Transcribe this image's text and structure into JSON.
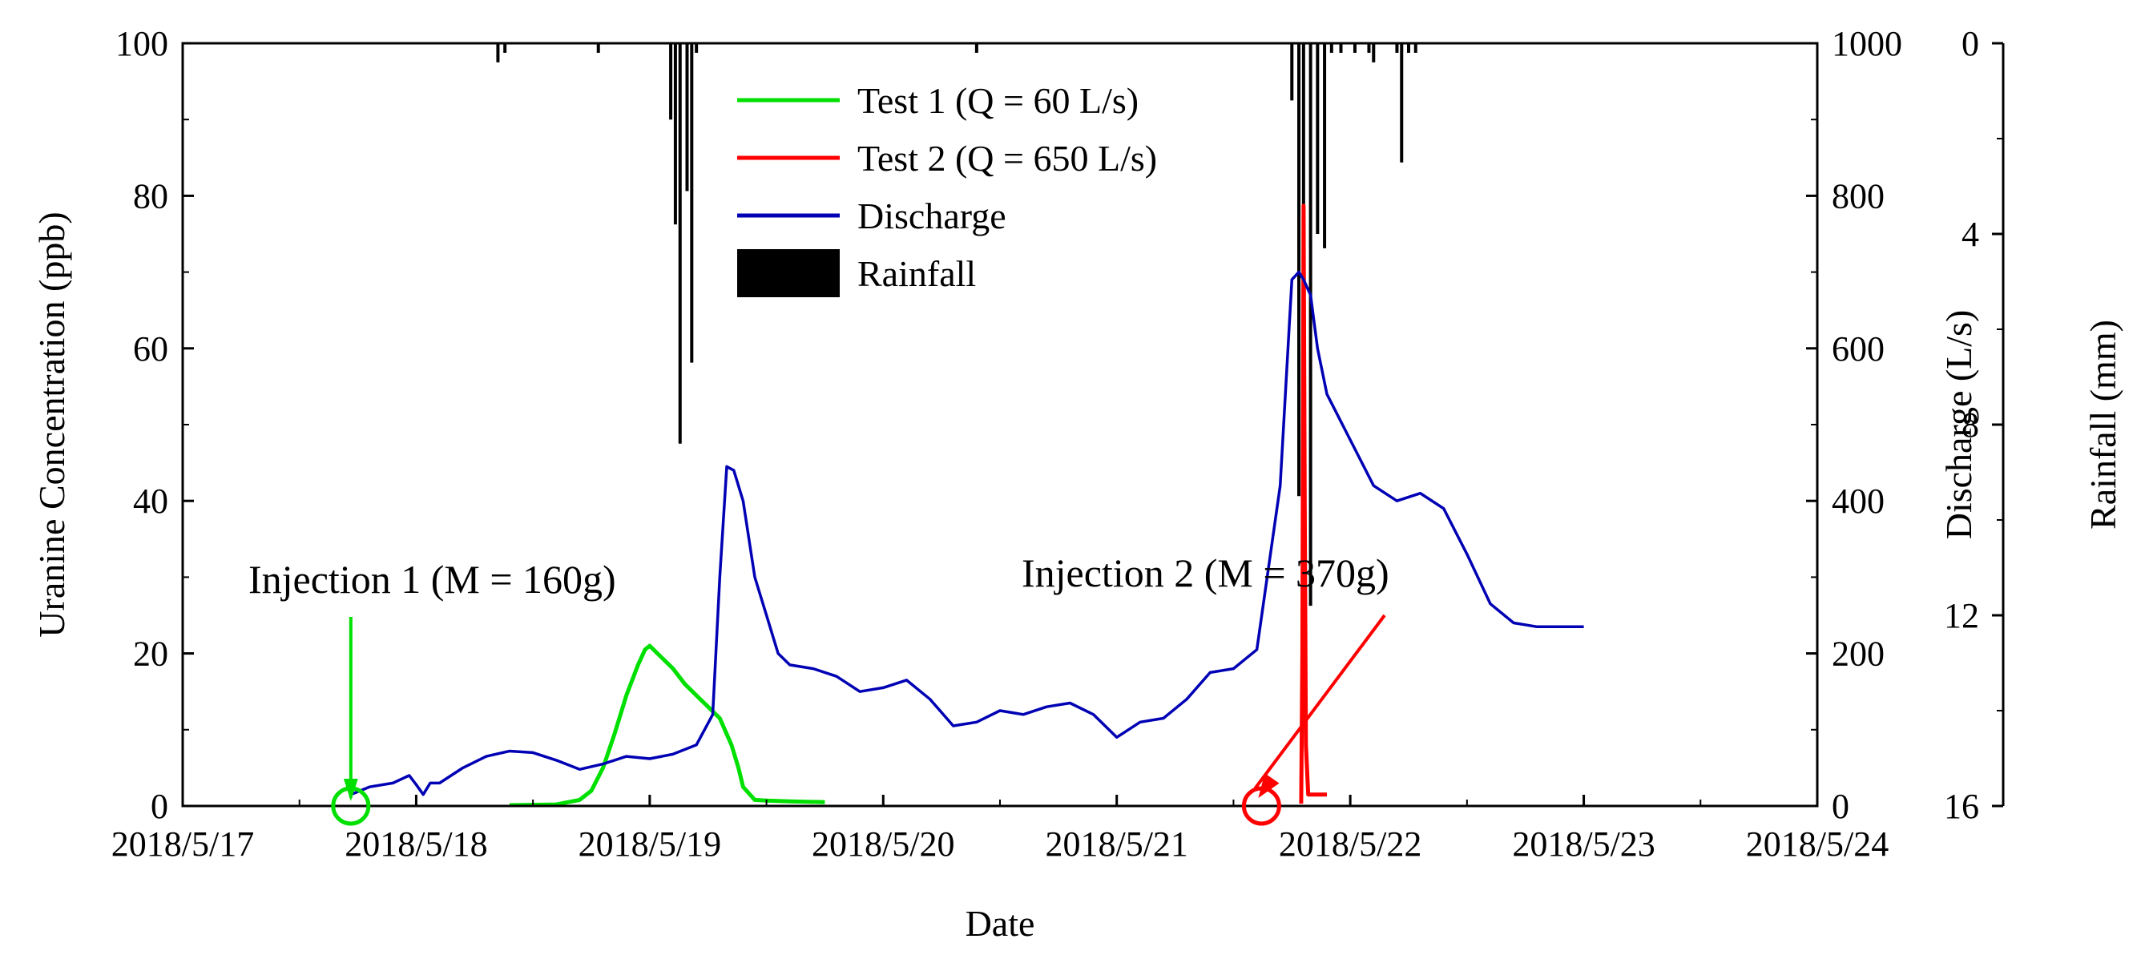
{
  "chart_data": {
    "type": "line",
    "xlabel": "Date",
    "x_ticks": [
      "2018/5/17",
      "2018/5/18",
      "2018/5/19",
      "2018/5/20",
      "2018/5/21",
      "2018/5/22",
      "2018/5/23",
      "2018/5/24"
    ],
    "xlim": [
      0,
      7
    ],
    "x_unit": "days since 2018/5/17 00:00",
    "left_axis": {
      "label": "Uranine Concentration (ppb)",
      "lim": [
        0,
        100
      ],
      "ticks": [
        "0",
        "20",
        "40",
        "60",
        "80",
        "100"
      ]
    },
    "right_axis_discharge": {
      "label": "Discharge (L/s)",
      "lim": [
        0,
        1000
      ],
      "ticks": [
        "0",
        "200",
        "400",
        "600",
        "800",
        "1000"
      ]
    },
    "right_axis_rainfall": {
      "label": "Rainfall (mm)",
      "lim": [
        0,
        16
      ],
      "inverted": true,
      "ticks": [
        "0",
        "4",
        "8",
        "12",
        "16"
      ]
    },
    "series": [
      {
        "name": "Test 1 (Q = 60 L/s)",
        "color": "#00e000",
        "axis": "left",
        "x": [
          1.4,
          1.6,
          1.7,
          1.75,
          1.8,
          1.85,
          1.9,
          1.95,
          1.98,
          2.0,
          2.05,
          2.1,
          2.15,
          2.2,
          2.25,
          2.3,
          2.35,
          2.38,
          2.4,
          2.45,
          2.5,
          2.6,
          2.75
        ],
        "values": [
          0.1,
          0.2,
          0.8,
          2.0,
          5.0,
          9.5,
          14.5,
          18.5,
          20.5,
          21.0,
          19.5,
          18.0,
          16.0,
          14.5,
          13.0,
          11.5,
          8.0,
          5.0,
          2.5,
          0.8,
          0.7,
          0.6,
          0.5
        ]
      },
      {
        "name": "Test 2 (Q = 650 L/s)",
        "color": "#ff0000",
        "axis": "left",
        "x": [
          4.79,
          4.795,
          4.8,
          4.805,
          4.81,
          4.82,
          4.83,
          4.9
        ],
        "values": [
          0.3,
          20.0,
          78.7,
          40.0,
          8.0,
          1.5,
          1.5,
          1.5
        ]
      },
      {
        "name": "Discharge",
        "color": "#0000b4",
        "axis": "right_discharge",
        "x": [
          0.72,
          0.8,
          0.9,
          0.97,
          1.0,
          1.03,
          1.06,
          1.1,
          1.2,
          1.3,
          1.4,
          1.5,
          1.6,
          1.7,
          1.8,
          1.9,
          2.0,
          2.1,
          2.2,
          2.27,
          2.3,
          2.33,
          2.36,
          2.4,
          2.45,
          2.5,
          2.55,
          2.6,
          2.7,
          2.8,
          2.9,
          3.0,
          3.1,
          3.2,
          3.3,
          3.4,
          3.5,
          3.6,
          3.7,
          3.8,
          3.9,
          4.0,
          4.1,
          4.2,
          4.3,
          4.4,
          4.5,
          4.6,
          4.7,
          4.75,
          4.78,
          4.8,
          4.83,
          4.86,
          4.9,
          5.0,
          5.1,
          5.2,
          5.3,
          5.4,
          5.5,
          5.6,
          5.7,
          5.8,
          5.9,
          6.0
        ],
        "values": [
          15,
          25,
          30,
          40,
          28,
          15,
          30,
          30,
          50,
          65,
          72,
          70,
          60,
          48,
          55,
          65,
          62,
          68,
          80,
          120,
          300,
          445,
          440,
          400,
          300,
          250,
          200,
          185,
          180,
          170,
          150,
          155,
          165,
          140,
          105,
          110,
          125,
          120,
          130,
          135,
          120,
          90,
          110,
          115,
          140,
          175,
          180,
          205,
          420,
          690,
          700,
          690,
          670,
          600,
          540,
          480,
          420,
          400,
          410,
          390,
          330,
          265,
          240,
          235,
          235,
          235
        ]
      },
      {
        "name": "Rainfall",
        "color": "#000000",
        "axis": "right_rainfall",
        "type": "bar",
        "x": [
          1.35,
          1.38,
          1.78,
          2.09,
          2.11,
          2.13,
          2.16,
          2.18,
          2.2,
          3.4,
          4.75,
          4.78,
          4.8,
          4.83,
          4.86,
          4.89,
          4.92,
          4.96,
          5.02,
          5.08,
          5.1,
          5.2,
          5.22,
          5.25,
          5.28
        ],
        "values": [
          0.4,
          0.2,
          0.2,
          1.6,
          3.8,
          8.4,
          3.1,
          6.7,
          0.2,
          0.2,
          1.2,
          9.5,
          5.8,
          11.8,
          4.0,
          4.3,
          0.2,
          0.2,
          0.2,
          0.2,
          0.4,
          0.2,
          2.5,
          0.2,
          0.2
        ]
      }
    ],
    "legend": {
      "position": "top-center",
      "entries": [
        "Test 1 (Q = 60 L/s)",
        "Test 2 (Q = 650 L/s)",
        "Discharge",
        "Rainfall"
      ]
    },
    "annotations": [
      {
        "text": "Injection 1 (M = 160g)",
        "color": "#00e000",
        "target_x": 0.72,
        "target_y": 0
      },
      {
        "text": "Injection 2 (M = 370g)",
        "color": "#ff0000",
        "target_x": 4.62,
        "target_y": 0
      }
    ]
  }
}
